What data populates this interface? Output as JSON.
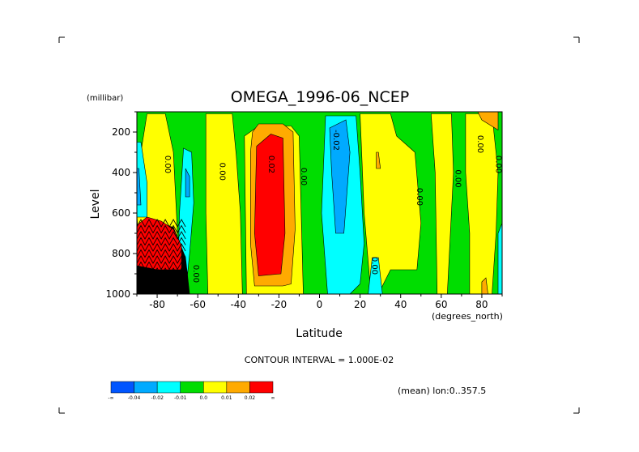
{
  "chart_data": {
    "type": "contour",
    "title": "OMEGA_1996-06_NCEP",
    "ylabel": "Level",
    "yunits": "(millibar)",
    "xlabel": "Latitude",
    "xunits": "(degrees_north)",
    "xlim": [
      -90,
      90
    ],
    "ylim": [
      1000,
      100
    ],
    "xticks": [
      -80,
      -60,
      -40,
      -20,
      0,
      20,
      40,
      60,
      80
    ],
    "xtick_labels": [
      "-80",
      "-60",
      "-40",
      "-20",
      "0",
      "20",
      "40",
      "60",
      "80"
    ],
    "yticks": [
      200,
      400,
      600,
      800,
      1000
    ],
    "ytick_labels": [
      "200",
      "400",
      "600",
      "800",
      "1000"
    ],
    "contour_interval_text": "CONTOUR INTERVAL = 1.000E-02",
    "footer_text": "(mean) lon:0..357.5",
    "colorbar": {
      "colors": [
        "#0055ff",
        "#00aaff",
        "#00ffff",
        "#00dd00",
        "#ffff00",
        "#ffaa00",
        "#ff0000"
      ],
      "labels": [
        "-∞",
        "-0.04",
        "-0.02",
        "-0.01",
        "0.0",
        "0.01",
        "0.02",
        "∞"
      ]
    },
    "background_color": "#00dd00",
    "regions": [
      {
        "color": "#ffff00",
        "points": [
          [
            -85,
            110
          ],
          [
            -76,
            110
          ],
          [
            -72,
            300
          ],
          [
            -70,
            700
          ],
          [
            -75,
            1000
          ],
          [
            -88,
            1000
          ],
          [
            -90,
            600
          ],
          [
            -88,
            300
          ]
        ]
      },
      {
        "color": "#00ffff",
        "points": [
          [
            -92,
            250
          ],
          [
            -88,
            250
          ],
          [
            -85,
            450
          ],
          [
            -85,
            620
          ],
          [
            -92,
            620
          ]
        ]
      },
      {
        "color": "#00aaff",
        "points": [
          [
            -92,
            380
          ],
          [
            -89,
            380
          ],
          [
            -88,
            560
          ],
          [
            -92,
            560
          ]
        ]
      },
      {
        "color": "#00ffff",
        "points": [
          [
            -67,
            280
          ],
          [
            -63,
            300
          ],
          [
            -62,
            550
          ],
          [
            -64,
            800
          ],
          [
            -66,
            1000
          ],
          [
            -70,
            1000
          ],
          [
            -69,
            600
          ]
        ]
      },
      {
        "color": "#00aaff",
        "points": [
          [
            -66,
            380
          ],
          [
            -64,
            420
          ],
          [
            -64,
            520
          ],
          [
            -66,
            520
          ]
        ]
      },
      {
        "color": "#000000",
        "points": [
          [
            -92,
            780
          ],
          [
            -80,
            650
          ],
          [
            -72,
            670
          ],
          [
            -66,
            820
          ],
          [
            -64,
            1000
          ],
          [
            -92,
            1000
          ]
        ]
      },
      {
        "color": "#ff0000",
        "points": [
          [
            -90,
            660
          ],
          [
            -85,
            620
          ],
          [
            -78,
            640
          ],
          [
            -72,
            680
          ],
          [
            -68,
            760
          ],
          [
            -68,
            880
          ],
          [
            -80,
            880
          ],
          [
            -90,
            860
          ]
        ]
      },
      {
        "color": "#ffff00",
        "points": [
          [
            -56,
            110
          ],
          [
            -43,
            110
          ],
          [
            -41,
            320
          ],
          [
            -39,
            600
          ],
          [
            -38,
            1000
          ],
          [
            -55,
            1000
          ],
          [
            -56,
            600
          ]
        ]
      },
      {
        "color": "#ffff00",
        "points": [
          [
            -36,
            1000
          ],
          [
            -37,
            220
          ],
          [
            -30,
            170
          ],
          [
            -14,
            170
          ],
          [
            -10,
            220
          ],
          [
            -8,
            1000
          ]
        ]
      },
      {
        "color": "#ffaa00",
        "points": [
          [
            -33,
            200
          ],
          [
            -30,
            160
          ],
          [
            -18,
            160
          ],
          [
            -13,
            200
          ],
          [
            -12,
            680
          ],
          [
            -14,
            950
          ],
          [
            -18,
            960
          ],
          [
            -32,
            960
          ],
          [
            -34,
            750
          ],
          [
            -34,
            300
          ]
        ]
      },
      {
        "color": "#ff0000",
        "points": [
          [
            -31,
            270
          ],
          [
            -24,
            210
          ],
          [
            -18,
            230
          ],
          [
            -17,
            700
          ],
          [
            -19,
            900
          ],
          [
            -30,
            910
          ],
          [
            -32,
            700
          ]
        ]
      },
      {
        "color": "#00ffff",
        "points": [
          [
            3,
            120
          ],
          [
            18,
            120
          ],
          [
            20,
            400
          ],
          [
            22,
            750
          ],
          [
            20,
            950
          ],
          [
            15,
            1000
          ],
          [
            4,
            1000
          ],
          [
            1,
            600
          ]
        ]
      },
      {
        "color": "#00aaff",
        "points": [
          [
            5,
            180
          ],
          [
            13,
            140
          ],
          [
            15,
            300
          ],
          [
            12,
            700
          ],
          [
            8,
            700
          ],
          [
            6,
            400
          ]
        ]
      },
      {
        "color": "#ffff00",
        "points": [
          [
            20,
            110
          ],
          [
            35,
            110
          ],
          [
            38,
            220
          ],
          [
            47,
            300
          ],
          [
            50,
            650
          ],
          [
            48,
            880
          ],
          [
            35,
            880
          ],
          [
            30,
            980
          ],
          [
            25,
            960
          ],
          [
            22,
            600
          ]
        ]
      },
      {
        "color": "#00ffff",
        "points": [
          [
            26,
            820
          ],
          [
            29,
            820
          ],
          [
            31,
            1000
          ],
          [
            24,
            1000
          ]
        ]
      },
      {
        "color": "#ffaa00",
        "points": [
          [
            28,
            300
          ],
          [
            29,
            300
          ],
          [
            30,
            380
          ],
          [
            28,
            380
          ]
        ]
      },
      {
        "color": "#ffff00",
        "points": [
          [
            55,
            110
          ],
          [
            65,
            110
          ],
          [
            66,
            400
          ],
          [
            63,
            1000
          ],
          [
            58,
            1000
          ],
          [
            57,
            400
          ]
        ]
      },
      {
        "color": "#ffff00",
        "points": [
          [
            72,
            110
          ],
          [
            85,
            110
          ],
          [
            88,
            400
          ],
          [
            87,
            700
          ],
          [
            85,
            1000
          ],
          [
            74,
            1000
          ],
          [
            74,
            700
          ],
          [
            72,
            400
          ]
        ]
      },
      {
        "color": "#ffaa00",
        "points": [
          [
            78,
            100
          ],
          [
            88,
            100
          ],
          [
            88,
            190
          ],
          [
            80,
            140
          ]
        ]
      },
      {
        "color": "#ffaa00",
        "points": [
          [
            80,
            940
          ],
          [
            82,
            920
          ],
          [
            83,
            1000
          ],
          [
            80,
            1000
          ]
        ]
      },
      {
        "color": "#00ffff",
        "points": [
          [
            88,
            700
          ],
          [
            90,
            650
          ],
          [
            90,
            1000
          ],
          [
            88,
            1000
          ]
        ]
      }
    ],
    "contour_labels": [
      {
        "text": "0.00",
        "lat": -76,
        "lev": 360
      },
      {
        "text": "0.00",
        "lat": -49,
        "lev": 395
      },
      {
        "text": "0.02",
        "lat": -25,
        "lev": 360
      },
      {
        "text": "0.00",
        "lat": -9,
        "lev": 420
      },
      {
        "text": "-0.02",
        "lat": 7,
        "lev": 240
      },
      {
        "text": "0.00",
        "lat": 48,
        "lev": 520
      },
      {
        "text": "0.00",
        "lat": 67,
        "lev": 430
      },
      {
        "text": "0.00",
        "lat": 78,
        "lev": 260
      },
      {
        "text": "0.00",
        "lat": 87,
        "lev": 360
      },
      {
        "text": "0.00",
        "lat": 26,
        "lev": 860
      },
      {
        "text": "0.00",
        "lat": -62,
        "lev": 900
      }
    ]
  }
}
